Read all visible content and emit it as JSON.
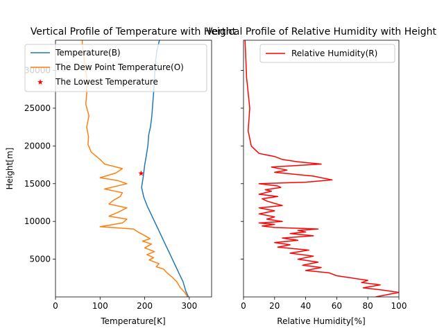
{
  "chart_data": [
    {
      "type": "line",
      "title": "Vertical Profile of Temperature with Height",
      "xlabel": "Temperature[K]",
      "ylabel": "Height[m]",
      "xlim": [
        0,
        350
      ],
      "ylim": [
        0,
        34000
      ],
      "xticks": [
        0,
        100,
        200,
        300
      ],
      "yticks": [
        5000,
        10000,
        15000,
        20000,
        25000,
        30000
      ],
      "legend": "top-left",
      "grid": false,
      "series": [
        {
          "name": "Temperature(B)",
          "color": "#1f77b4",
          "x": [
            298,
            292,
            286,
            278,
            270,
            262,
            254,
            246,
            238,
            230,
            222,
            214,
            206,
            198,
            193,
            197,
            200,
            203,
            207,
            209,
            213,
            216,
            218,
            220,
            221,
            222,
            223,
            224,
            226,
            227,
            229,
            231,
            233
          ],
          "y": [
            0,
            800,
            2000,
            3000,
            4000,
            5000,
            6000,
            7000,
            8000,
            9000,
            10000,
            11000,
            12000,
            13200,
            14500,
            16000,
            17500,
            18500,
            20000,
            21500,
            22500,
            24000,
            25500,
            27000,
            28000,
            29000,
            30000,
            31000,
            32000,
            32500,
            33000,
            33500,
            34000
          ]
        },
        {
          "name": "The Dew Point Temperature(O)",
          "color": "#ff7f0e",
          "x": [
            296,
            290,
            280,
            272,
            262,
            250,
            242,
            226,
            232,
            210,
            220,
            205,
            222,
            200,
            215,
            195,
            212,
            198,
            185,
            175,
            100,
            150,
            160,
            120,
            140,
            160,
            120,
            130,
            145,
            150,
            110,
            160,
            140,
            100,
            135,
            150,
            110,
            100,
            80,
            73,
            74,
            70,
            75,
            68,
            70,
            70,
            65,
            62,
            60,
            60
          ],
          "y": [
            0,
            600,
            1200,
            2000,
            2600,
            3200,
            3700,
            4000,
            4400,
            4900,
            5200,
            5600,
            6000,
            6500,
            7000,
            7400,
            7700,
            8200,
            8600,
            9000,
            9300,
            9800,
            10300,
            10700,
            11200,
            11800,
            12300,
            12800,
            13300,
            13800,
            14300,
            15000,
            15400,
            15800,
            16400,
            17000,
            17600,
            18200,
            19200,
            20200,
            21200,
            22500,
            24000,
            25500,
            27000,
            29000,
            31000,
            32500,
            33500,
            34000
          ]
        },
        {
          "name": "The Lowest Temperature",
          "color": "#ff0000",
          "marker": "star",
          "x": [
            192
          ],
          "y": [
            16400
          ]
        }
      ]
    },
    {
      "type": "line",
      "title": "Vertical Profile of Relative Humidity with Height",
      "xlabel": "Relative Humidity[%]",
      "ylabel": "",
      "xlim": [
        0,
        100
      ],
      "ylim": [
        0,
        34000
      ],
      "xticks": [
        0,
        20,
        40,
        60,
        80,
        100
      ],
      "legend": "top-right",
      "grid": false,
      "series": [
        {
          "name": "Relative Humidity(R)",
          "color": "#ff0000",
          "x": [
            85,
            100,
            90,
            77,
            88,
            76,
            80,
            70,
            60,
            55,
            40,
            50,
            38,
            48,
            35,
            45,
            30,
            42,
            22,
            30,
            20,
            35,
            25,
            45,
            30,
            40,
            35,
            48,
            20,
            12,
            20,
            10,
            25,
            15,
            20,
            10,
            20,
            10,
            25,
            20,
            15,
            12,
            22,
            10,
            18,
            14,
            24,
            22,
            10,
            40,
            57,
            45,
            20,
            28,
            18,
            50,
            35,
            25,
            20,
            10,
            5,
            3,
            4,
            2,
            1
          ],
          "y": [
            0,
            600,
            900,
            1200,
            1600,
            1900,
            2200,
            2500,
            2800,
            3200,
            3500,
            3900,
            4200,
            4600,
            5000,
            5400,
            5800,
            6200,
            6600,
            6900,
            7200,
            7500,
            7800,
            8100,
            8400,
            8600,
            8800,
            9000,
            9200,
            9400,
            9600,
            9800,
            10000,
            10300,
            10600,
            11000,
            11400,
            11800,
            12100,
            12400,
            12700,
            13000,
            13300,
            13600,
            14000,
            14200,
            14500,
            14700,
            15000,
            15200,
            15500,
            16000,
            16500,
            16800,
            17200,
            17600,
            17900,
            18200,
            18600,
            19000,
            20000,
            22000,
            25000,
            29000,
            34000
          ]
        }
      ]
    }
  ]
}
